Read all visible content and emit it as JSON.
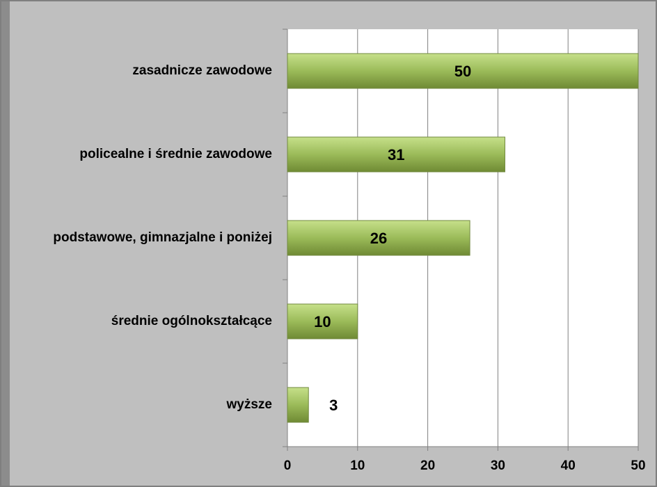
{
  "chart_data": {
    "type": "bar",
    "orientation": "horizontal",
    "categories": [
      "zasadnicze zawodowe",
      "policealne i średnie zawodowe",
      "podstawowe, gimnazjalne i poniżej",
      "średnie ogólnokształcące",
      "wyższe"
    ],
    "values": [
      50,
      31,
      26,
      10,
      3
    ],
    "color": "#9bbb59",
    "xlim": [
      0,
      50
    ],
    "xticks": [
      0,
      10,
      20,
      30,
      40,
      50
    ],
    "grid": true
  }
}
